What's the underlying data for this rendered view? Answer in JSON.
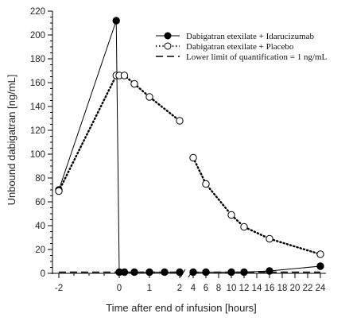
{
  "chart_data": {
    "type": "line",
    "xlabel": "Time after end of infusion [hours]",
    "ylabel": "Unbound dabigatran [ng/mL]",
    "ylim": [
      0,
      220
    ],
    "yticks": [
      0,
      20,
      40,
      60,
      80,
      100,
      120,
      140,
      160,
      180,
      200,
      220
    ],
    "x_axis_broken": true,
    "x_segments": [
      {
        "range": [
          -2,
          2
        ],
        "ticks": [
          -2,
          0,
          1,
          2
        ]
      },
      {
        "range": [
          4,
          24
        ],
        "ticks": [
          4,
          6,
          8,
          10,
          12,
          14,
          16,
          18,
          20,
          22,
          24
        ]
      }
    ],
    "xtick_labels": [
      "-2",
      "0",
      "1",
      "2",
      "4",
      "6",
      "8",
      "10",
      "12",
      "14",
      "16",
      "18",
      "20",
      "22",
      "24"
    ],
    "legend_position": "top-right",
    "series": [
      {
        "name": "Dabigatran etexilate + Idarucizumab",
        "marker": "filled-circle",
        "line": "solid",
        "color": "#000000",
        "points": [
          {
            "x": -2,
            "y": 70
          },
          {
            "x": -0.1,
            "y": 212
          },
          {
            "x": 0,
            "y": 1
          },
          {
            "x": 0.17,
            "y": 1
          },
          {
            "x": 0.5,
            "y": 1
          },
          {
            "x": 1,
            "y": 1
          },
          {
            "x": 1.5,
            "y": 1
          },
          {
            "x": 2,
            "y": 1
          },
          {
            "x": 4,
            "y": 1
          },
          {
            "x": 6,
            "y": 1
          },
          {
            "x": 10,
            "y": 1
          },
          {
            "x": 12,
            "y": 1
          },
          {
            "x": 16,
            "y": 2
          },
          {
            "x": 24,
            "y": 6
          }
        ]
      },
      {
        "name": "Dabigatran etexilate + Placebo",
        "marker": "open-circle",
        "line": "dotted",
        "color": "#000000",
        "points": [
          {
            "x": -2,
            "y": 69
          },
          {
            "x": -0.1,
            "y": 166
          },
          {
            "x": 0,
            "y": 166
          },
          {
            "x": 0.17,
            "y": 166
          },
          {
            "x": 0.5,
            "y": 159
          },
          {
            "x": 1,
            "y": 148
          },
          {
            "x": 2,
            "y": 128
          },
          {
            "x": 4,
            "y": 97
          },
          {
            "x": 6,
            "y": 75
          },
          {
            "x": 10,
            "y": 49
          },
          {
            "x": 12,
            "y": 39
          },
          {
            "x": 16,
            "y": 29
          },
          {
            "x": 24,
            "y": 16
          }
        ]
      }
    ],
    "reference_line": {
      "name": "Lower limit of quantification = 1 ng/mL",
      "y": 1,
      "style": "dashed",
      "color": "#000000"
    }
  }
}
